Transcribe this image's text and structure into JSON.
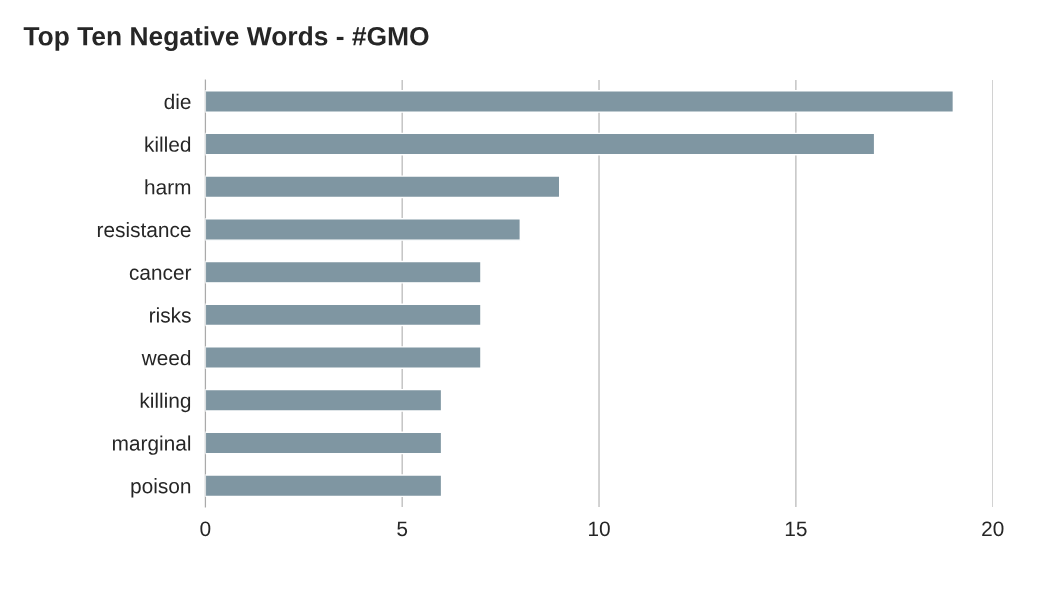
{
  "chart_data": {
    "type": "bar",
    "orientation": "horizontal",
    "title": "Top Ten Negative Words - #GMO",
    "categories": [
      "die",
      "killed",
      "harm",
      "resistance",
      "cancer",
      "risks",
      "weed",
      "killing",
      "marginal",
      "poison"
    ],
    "values": [
      19,
      17,
      9,
      8,
      7,
      7,
      7,
      6,
      6,
      6
    ],
    "color": "#7f96a2",
    "xlim": [
      0,
      20
    ],
    "xticks": [
      0,
      5,
      10,
      15,
      20
    ],
    "grid": "x",
    "legend": false
  }
}
